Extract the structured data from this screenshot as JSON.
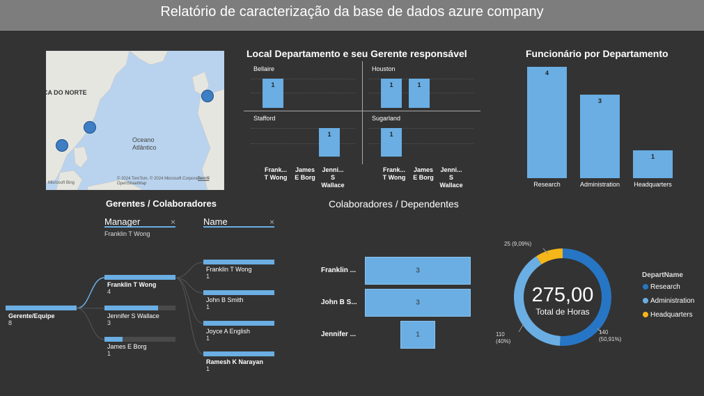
{
  "header": {
    "title": "Relatório de caracterização da base de dados azure company"
  },
  "map": {
    "label_na": "CA DO NORTE",
    "label_ocean1": "Oceano",
    "label_ocean2": "Atlântico",
    "credit": "© 2024 TomTom, © 2024 Microsoft Corporation, © OpenStreetMap",
    "terms": "Terms",
    "logo": "Microsoft Bing"
  },
  "local_chart": {
    "title": "Local Departamento e seu Gerente responsável",
    "panels": [
      {
        "location": "Bellaire",
        "values": [
          1,
          null,
          null
        ]
      },
      {
        "location": "Houston",
        "values": [
          1,
          1,
          null
        ]
      },
      {
        "location": "Stafford",
        "values": [
          null,
          null,
          1
        ]
      },
      {
        "location": "Sugarland",
        "values": [
          1,
          null,
          null
        ]
      }
    ],
    "categories_left": [
      "Frank...\nT Wong",
      "James\nE Borg",
      "Jenni...\nS\nWallace"
    ],
    "categories_right": [
      "Frank...\nT Wong",
      "James\nE Borg",
      "Jenni...\nS\nWallace"
    ]
  },
  "chart_data": [
    {
      "type": "bar",
      "title": "Funcionário por Departamento",
      "categories": [
        "Research",
        "Administration",
        "Headquarters"
      ],
      "values": [
        4,
        3,
        1
      ],
      "ylim": [
        0,
        4
      ]
    },
    {
      "type": "bar",
      "title": "Colaboradores / Dependentes",
      "orientation": "horizontal",
      "categories": [
        "Franklin ...",
        "John B S...",
        "Jennifer ..."
      ],
      "values": [
        3,
        3,
        1
      ]
    },
    {
      "type": "pie",
      "style": "donut",
      "center_value": "275,00",
      "center_label": "Total de Horas",
      "legend_title": "DepartName",
      "categories": [
        "Research",
        "Administration",
        "Headquarters"
      ],
      "values": [
        140,
        110,
        25
      ],
      "labels": [
        "140\n(50,91%)",
        "110\n(40%)",
        "25 (9,09%)"
      ],
      "colors": [
        "#2776c5",
        "#6aaee3",
        "#f4b619"
      ]
    }
  ],
  "tree": {
    "title": "Gerentes / Colaboradores",
    "manager_slicer": {
      "label": "Manager",
      "value": "Franklin T Wong",
      "clear": "×"
    },
    "name_slicer": {
      "label": "Name",
      "clear": "×"
    },
    "root": {
      "label": "Gerente/Equipe",
      "count": "8"
    },
    "level1": [
      {
        "label": "Franklin T Wong",
        "count": "4",
        "fraction": 1.0
      },
      {
        "label": "Jennifer S Wallace",
        "count": "3",
        "fraction": 0.75
      },
      {
        "label": "James E Borg",
        "count": "1",
        "fraction": 0.25
      }
    ],
    "level2": [
      {
        "label": "Franklin T Wong",
        "count": "1"
      },
      {
        "label": "John B Smith",
        "count": "1"
      },
      {
        "label": "Joyce A English",
        "count": "1"
      },
      {
        "label": "Ramesh K Narayan",
        "count": "1"
      }
    ]
  },
  "colors": {
    "accent": "#6aaee3",
    "dark_blue": "#2776c5",
    "yellow": "#f4b619",
    "background": "#333333"
  }
}
